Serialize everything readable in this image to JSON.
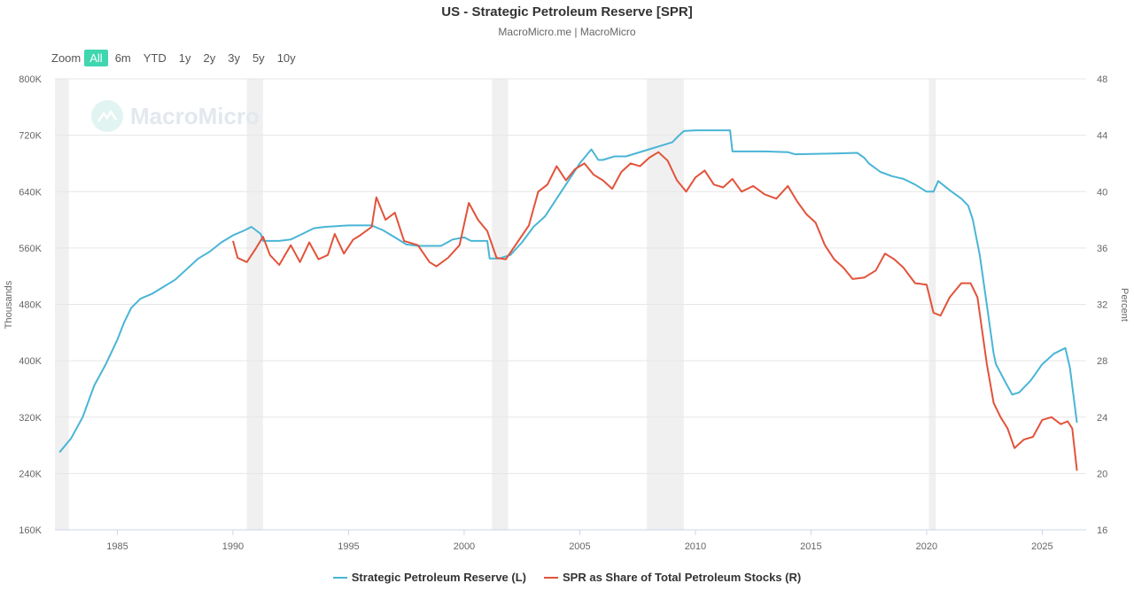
{
  "header": {
    "title": "US - Strategic Petroleum Reserve [SPR]",
    "subtitle": "MacroMicro.me | MacroMicro"
  },
  "zoom": {
    "label": "Zoom",
    "buttons": [
      "All",
      "6m",
      "YTD",
      "1y",
      "2y",
      "3y",
      "5y",
      "10y"
    ],
    "active": "All"
  },
  "watermark": {
    "text": "MacroMicro"
  },
  "colors": {
    "series1": "#4ab5d6",
    "series2": "#e2533a",
    "band": "#f0f0f0",
    "grid": "#e6e6e6"
  },
  "chart_data": {
    "type": "line",
    "title": "US - Strategic Petroleum Reserve [SPR]",
    "subtitle": "MacroMicro.me | MacroMicro",
    "xlim": [
      1982.3,
      2026.9
    ],
    "x_ticks": [
      1985,
      1990,
      1995,
      2000,
      2005,
      2010,
      2015,
      2020,
      2025
    ],
    "left_axis": {
      "title": "Thousands",
      "ylim": [
        160,
        800
      ],
      "ticks": [
        "160K",
        "240K",
        "320K",
        "400K",
        "480K",
        "560K",
        "640K",
        "720K",
        "800K"
      ]
    },
    "right_axis": {
      "title": "Percent",
      "ylim": [
        16,
        48
      ],
      "ticks": [
        "16",
        "20",
        "24",
        "28",
        "32",
        "36",
        "40",
        "44",
        "48"
      ]
    },
    "recession_bands": [
      [
        1982.0,
        1982.9
      ],
      [
        1990.6,
        1991.3
      ],
      [
        2001.2,
        2001.9
      ],
      [
        2007.9,
        2009.5
      ],
      [
        2020.1,
        2020.4
      ]
    ],
    "grid": true,
    "legend_position": "bottom",
    "series": [
      {
        "name": "Strategic Petroleum Reserve (L)",
        "axis": "left",
        "points": [
          [
            1982.5,
            270
          ],
          [
            1983.0,
            290
          ],
          [
            1983.5,
            320
          ],
          [
            1984.0,
            365
          ],
          [
            1984.5,
            395
          ],
          [
            1985.0,
            430
          ],
          [
            1985.3,
            455
          ],
          [
            1985.6,
            475
          ],
          [
            1986.0,
            488
          ],
          [
            1986.5,
            495
          ],
          [
            1987.0,
            505
          ],
          [
            1987.5,
            515
          ],
          [
            1988.0,
            530
          ],
          [
            1988.5,
            545
          ],
          [
            1989.0,
            555
          ],
          [
            1989.5,
            568
          ],
          [
            1990.0,
            578
          ],
          [
            1990.5,
            585
          ],
          [
            1990.8,
            590
          ],
          [
            1991.2,
            580
          ],
          [
            1991.3,
            570
          ],
          [
            1992.0,
            570
          ],
          [
            1992.5,
            572
          ],
          [
            1993.0,
            580
          ],
          [
            1993.5,
            588
          ],
          [
            1994.0,
            590
          ],
          [
            1995.0,
            592
          ],
          [
            1996.0,
            592
          ],
          [
            1996.5,
            585
          ],
          [
            1997.0,
            575
          ],
          [
            1997.5,
            565
          ],
          [
            1998.0,
            563
          ],
          [
            1999.0,
            563
          ],
          [
            1999.5,
            572
          ],
          [
            2000.0,
            575
          ],
          [
            2000.3,
            570
          ],
          [
            2001.0,
            570
          ],
          [
            2001.1,
            545
          ],
          [
            2001.5,
            545
          ],
          [
            2002.0,
            550
          ],
          [
            2002.5,
            568
          ],
          [
            2003.0,
            590
          ],
          [
            2003.5,
            605
          ],
          [
            2004.0,
            630
          ],
          [
            2004.5,
            655
          ],
          [
            2005.0,
            680
          ],
          [
            2005.5,
            700
          ],
          [
            2005.8,
            685
          ],
          [
            2006.0,
            685
          ],
          [
            2006.5,
            690
          ],
          [
            2007.0,
            690
          ],
          [
            2007.5,
            695
          ],
          [
            2008.0,
            700
          ],
          [
            2008.5,
            705
          ],
          [
            2009.0,
            710
          ],
          [
            2009.3,
            720
          ],
          [
            2009.5,
            726
          ],
          [
            2010.0,
            727
          ],
          [
            2011.5,
            727
          ],
          [
            2011.6,
            697
          ],
          [
            2013.0,
            697
          ],
          [
            2014.0,
            696
          ],
          [
            2014.3,
            693
          ],
          [
            2016.0,
            694
          ],
          [
            2017.0,
            695
          ],
          [
            2017.3,
            688
          ],
          [
            2017.5,
            680
          ],
          [
            2018.0,
            668
          ],
          [
            2018.5,
            662
          ],
          [
            2019.0,
            658
          ],
          [
            2019.5,
            650
          ],
          [
            2020.0,
            640
          ],
          [
            2020.3,
            640
          ],
          [
            2020.5,
            655
          ],
          [
            2021.0,
            642
          ],
          [
            2021.5,
            630
          ],
          [
            2021.8,
            620
          ],
          [
            2022.0,
            600
          ],
          [
            2022.3,
            550
          ],
          [
            2022.6,
            480
          ],
          [
            2022.9,
            410
          ],
          [
            2023.0,
            395
          ],
          [
            2023.4,
            370
          ],
          [
            2023.7,
            352
          ],
          [
            2024.0,
            355
          ],
          [
            2024.5,
            372
          ],
          [
            2025.0,
            395
          ],
          [
            2025.5,
            410
          ],
          [
            2026.0,
            418
          ],
          [
            2026.2,
            390
          ],
          [
            2026.5,
            312
          ]
        ]
      },
      {
        "name": "SPR as Share of Total Petroleum Stocks (R)",
        "axis": "right",
        "points": [
          [
            1990.0,
            36.5
          ],
          [
            1990.2,
            35.3
          ],
          [
            1990.6,
            35.0
          ],
          [
            1991.0,
            36.0
          ],
          [
            1991.3,
            36.8
          ],
          [
            1991.6,
            35.5
          ],
          [
            1992.0,
            34.8
          ],
          [
            1992.5,
            36.2
          ],
          [
            1992.9,
            35.0
          ],
          [
            1993.3,
            36.4
          ],
          [
            1993.7,
            35.2
          ],
          [
            1994.1,
            35.5
          ],
          [
            1994.4,
            37.0
          ],
          [
            1994.8,
            35.6
          ],
          [
            1995.2,
            36.6
          ],
          [
            1995.5,
            36.9
          ],
          [
            1996.0,
            37.5
          ],
          [
            1996.2,
            39.6
          ],
          [
            1996.6,
            38.0
          ],
          [
            1997.0,
            38.5
          ],
          [
            1997.4,
            36.5
          ],
          [
            1998.0,
            36.2
          ],
          [
            1998.5,
            35.0
          ],
          [
            1998.8,
            34.7
          ],
          [
            1999.3,
            35.3
          ],
          [
            1999.8,
            36.2
          ],
          [
            2000.2,
            39.2
          ],
          [
            2000.6,
            38.0
          ],
          [
            2001.0,
            37.2
          ],
          [
            2001.4,
            35.3
          ],
          [
            2001.8,
            35.2
          ],
          [
            2002.3,
            36.4
          ],
          [
            2002.8,
            37.6
          ],
          [
            2003.2,
            40.0
          ],
          [
            2003.6,
            40.5
          ],
          [
            2004.0,
            41.8
          ],
          [
            2004.4,
            40.8
          ],
          [
            2004.8,
            41.6
          ],
          [
            2005.2,
            42.0
          ],
          [
            2005.6,
            41.2
          ],
          [
            2006.0,
            40.8
          ],
          [
            2006.4,
            40.2
          ],
          [
            2006.8,
            41.4
          ],
          [
            2007.2,
            42.0
          ],
          [
            2007.6,
            41.8
          ],
          [
            2008.0,
            42.4
          ],
          [
            2008.4,
            42.8
          ],
          [
            2008.8,
            42.2
          ],
          [
            2009.2,
            40.8
          ],
          [
            2009.6,
            40.0
          ],
          [
            2010.0,
            41.0
          ],
          [
            2010.4,
            41.5
          ],
          [
            2010.8,
            40.5
          ],
          [
            2011.2,
            40.3
          ],
          [
            2011.6,
            40.9
          ],
          [
            2012.0,
            40.0
          ],
          [
            2012.5,
            40.4
          ],
          [
            2013.0,
            39.8
          ],
          [
            2013.5,
            39.5
          ],
          [
            2014.0,
            40.4
          ],
          [
            2014.4,
            39.3
          ],
          [
            2014.8,
            38.4
          ],
          [
            2015.2,
            37.8
          ],
          [
            2015.6,
            36.2
          ],
          [
            2016.0,
            35.2
          ],
          [
            2016.4,
            34.6
          ],
          [
            2016.8,
            33.8
          ],
          [
            2017.3,
            33.9
          ],
          [
            2017.8,
            34.4
          ],
          [
            2018.2,
            35.6
          ],
          [
            2018.6,
            35.2
          ],
          [
            2019.0,
            34.6
          ],
          [
            2019.5,
            33.5
          ],
          [
            2020.0,
            33.4
          ],
          [
            2020.3,
            31.4
          ],
          [
            2020.6,
            31.2
          ],
          [
            2021.0,
            32.5
          ],
          [
            2021.5,
            33.5
          ],
          [
            2021.9,
            33.5
          ],
          [
            2022.2,
            32.5
          ],
          [
            2022.6,
            27.8
          ],
          [
            2022.9,
            25.0
          ],
          [
            2023.2,
            24.0
          ],
          [
            2023.5,
            23.2
          ],
          [
            2023.8,
            21.8
          ],
          [
            2024.2,
            22.4
          ],
          [
            2024.6,
            22.6
          ],
          [
            2025.0,
            23.8
          ],
          [
            2025.4,
            24.0
          ],
          [
            2025.8,
            23.5
          ],
          [
            2026.1,
            23.7
          ],
          [
            2026.3,
            23.2
          ],
          [
            2026.5,
            20.2
          ]
        ]
      }
    ]
  }
}
